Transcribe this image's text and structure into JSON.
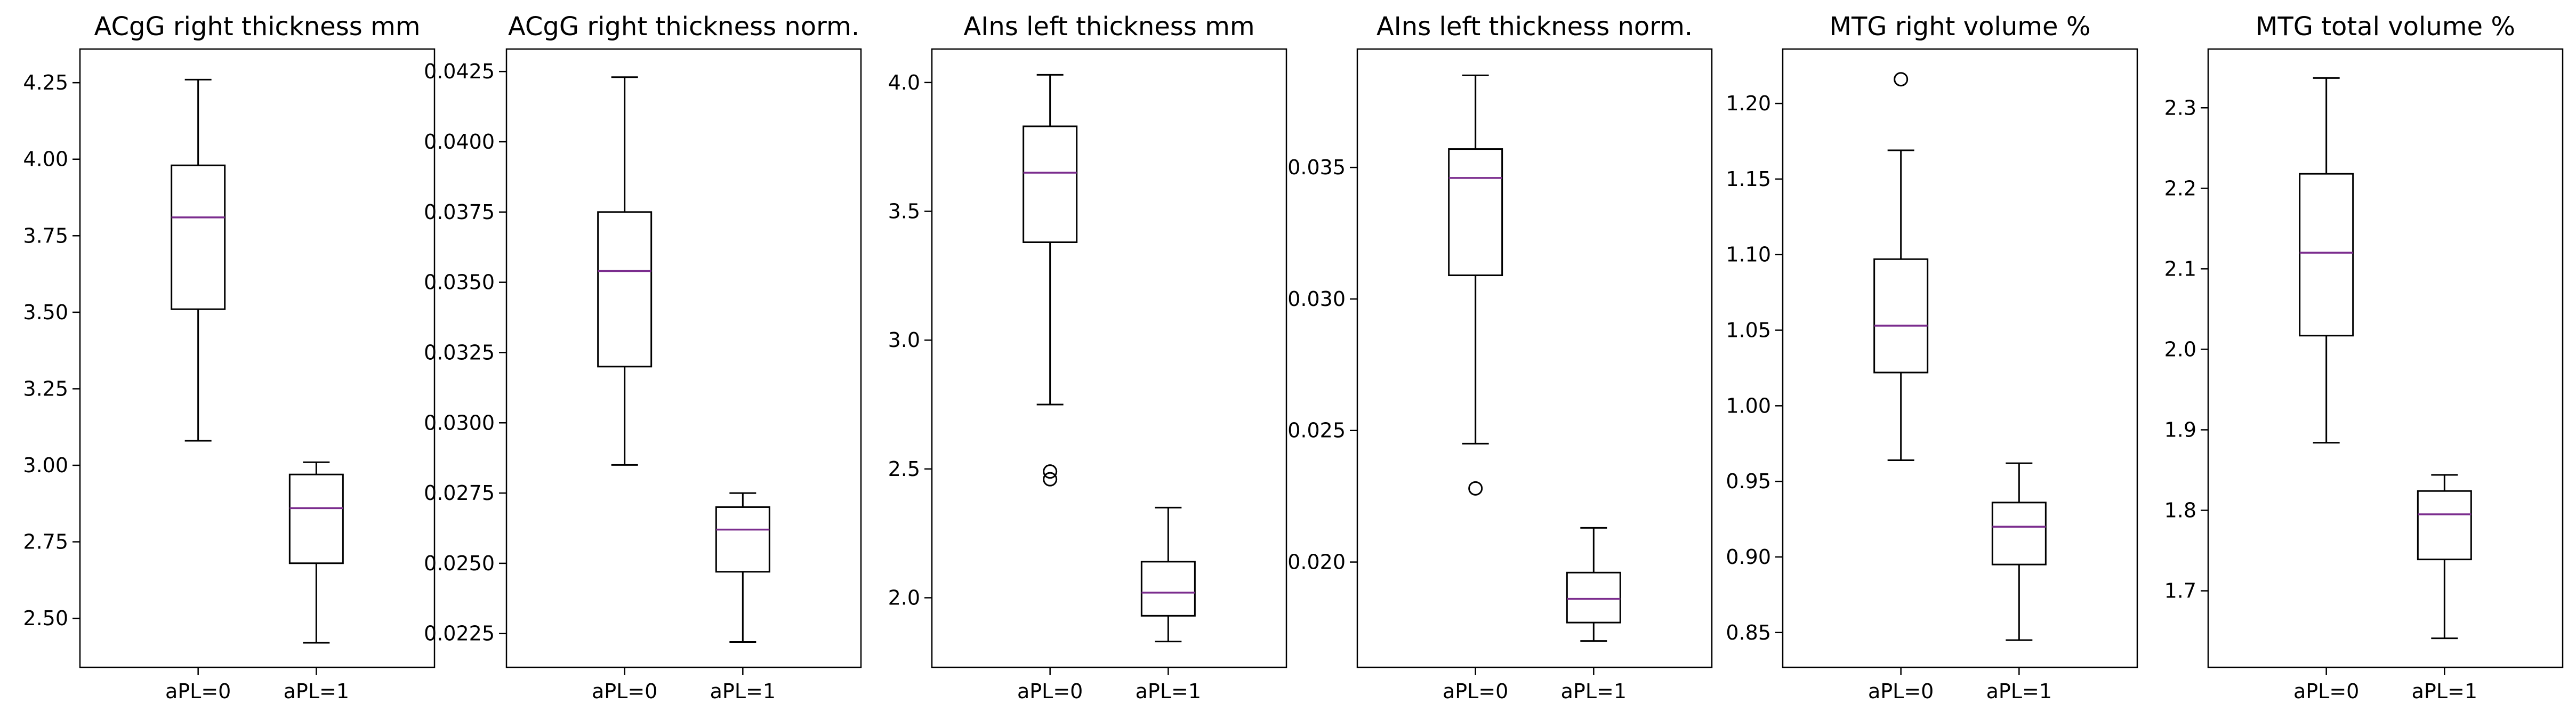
{
  "colors": {
    "box": "#000000",
    "median": "#7b2d8e",
    "background": "#ffffff"
  },
  "chart_data": [
    {
      "type": "boxplot",
      "title": "ACgG right thickness mm",
      "categories": [
        "aPL=0",
        "aPL=1"
      ],
      "ylim": [
        2.34,
        4.36
      ],
      "yticks": [
        2.5,
        2.75,
        3.0,
        3.25,
        3.5,
        3.75,
        4.0,
        4.25
      ],
      "ytick_labels": [
        "2.50",
        "2.75",
        "3.00",
        "3.25",
        "3.50",
        "3.75",
        "4.00",
        "4.25"
      ],
      "boxes": [
        {
          "category": "aPL=0",
          "whisker_low": 3.08,
          "q1": 3.51,
          "median": 3.81,
          "q3": 3.98,
          "whisker_high": 4.26,
          "fliers": []
        },
        {
          "category": "aPL=1",
          "whisker_low": 2.42,
          "q1": 2.68,
          "median": 2.86,
          "q3": 2.97,
          "whisker_high": 3.01,
          "fliers": []
        }
      ]
    },
    {
      "type": "boxplot",
      "title": "ACgG right thickness norm.",
      "categories": [
        "aPL=0",
        "aPL=1"
      ],
      "ylim": [
        0.0213,
        0.0433
      ],
      "yticks": [
        0.0225,
        0.025,
        0.0275,
        0.03,
        0.0325,
        0.035,
        0.0375,
        0.04,
        0.0425
      ],
      "ytick_labels": [
        "0.0225",
        "0.0250",
        "0.0275",
        "0.0300",
        "0.0325",
        "0.0350",
        "0.0375",
        "0.0400",
        "0.0425"
      ],
      "boxes": [
        {
          "category": "aPL=0",
          "whisker_low": 0.0285,
          "q1": 0.032,
          "median": 0.0354,
          "q3": 0.0375,
          "whisker_high": 0.0423,
          "fliers": []
        },
        {
          "category": "aPL=1",
          "whisker_low": 0.0222,
          "q1": 0.0247,
          "median": 0.0262,
          "q3": 0.027,
          "whisker_high": 0.0275,
          "fliers": []
        }
      ]
    },
    {
      "type": "boxplot",
      "title": "AIns left thickness mm",
      "categories": [
        "aPL=0",
        "aPL=1"
      ],
      "ylim": [
        1.73,
        4.13
      ],
      "yticks": [
        2.0,
        2.5,
        3.0,
        3.5,
        4.0
      ],
      "ytick_labels": [
        "2.0",
        "2.5",
        "3.0",
        "3.5",
        "4.0"
      ],
      "boxes": [
        {
          "category": "aPL=0",
          "whisker_low": 2.75,
          "q1": 3.38,
          "median": 3.65,
          "q3": 3.83,
          "whisker_high": 4.03,
          "fliers": [
            2.49,
            2.46
          ]
        },
        {
          "category": "aPL=1",
          "whisker_low": 1.83,
          "q1": 1.93,
          "median": 2.02,
          "q3": 2.14,
          "whisker_high": 2.35,
          "fliers": []
        }
      ]
    },
    {
      "type": "boxplot",
      "title": "AIns left thickness norm.",
      "categories": [
        "aPL=0",
        "aPL=1"
      ],
      "ylim": [
        0.016,
        0.0395
      ],
      "yticks": [
        0.02,
        0.025,
        0.03,
        0.035
      ],
      "ytick_labels": [
        "0.020",
        "0.025",
        "0.030",
        "0.035"
      ],
      "boxes": [
        {
          "category": "aPL=0",
          "whisker_low": 0.0245,
          "q1": 0.0309,
          "median": 0.0346,
          "q3": 0.0357,
          "whisker_high": 0.0385,
          "fliers": [
            0.0228
          ]
        },
        {
          "category": "aPL=1",
          "whisker_low": 0.017,
          "q1": 0.0177,
          "median": 0.0186,
          "q3": 0.0196,
          "whisker_high": 0.0213,
          "fliers": []
        }
      ]
    },
    {
      "type": "boxplot",
      "title": "MTG right volume %",
      "categories": [
        "aPL=0",
        "aPL=1"
      ],
      "ylim": [
        0.827,
        1.236
      ],
      "yticks": [
        0.85,
        0.9,
        0.95,
        1.0,
        1.05,
        1.1,
        1.15,
        1.2
      ],
      "ytick_labels": [
        "0.85",
        "0.90",
        "0.95",
        "1.00",
        "1.05",
        "1.10",
        "1.15",
        "1.20"
      ],
      "boxes": [
        {
          "category": "aPL=0",
          "whisker_low": 0.964,
          "q1": 1.022,
          "median": 1.053,
          "q3": 1.097,
          "whisker_high": 1.169,
          "fliers": [
            1.216
          ]
        },
        {
          "category": "aPL=1",
          "whisker_low": 0.845,
          "q1": 0.895,
          "median": 0.92,
          "q3": 0.936,
          "whisker_high": 0.962,
          "fliers": []
        }
      ]
    },
    {
      "type": "boxplot",
      "title": "MTG total volume %",
      "categories": [
        "aPL=0",
        "aPL=1"
      ],
      "ylim": [
        1.605,
        2.373
      ],
      "yticks": [
        1.7,
        1.8,
        1.9,
        2.0,
        2.1,
        2.2,
        2.3
      ],
      "ytick_labels": [
        "1.7",
        "1.8",
        "1.9",
        "2.0",
        "2.1",
        "2.2",
        "2.3"
      ],
      "boxes": [
        {
          "category": "aPL=0",
          "whisker_low": 1.884,
          "q1": 2.017,
          "median": 2.12,
          "q3": 2.218,
          "whisker_high": 2.337,
          "fliers": []
        },
        {
          "category": "aPL=1",
          "whisker_low": 1.641,
          "q1": 1.739,
          "median": 1.795,
          "q3": 1.824,
          "whisker_high": 1.844,
          "fliers": []
        }
      ]
    }
  ]
}
